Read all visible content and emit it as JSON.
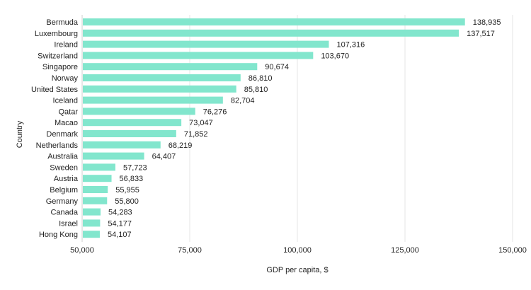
{
  "chart_data": {
    "type": "bar",
    "orientation": "horizontal",
    "title": "",
    "xlabel": "GDP per capita, $",
    "ylabel": "Country",
    "xlim": [
      50000,
      150000
    ],
    "xticks": [
      50000,
      75000,
      100000,
      125000,
      150000
    ],
    "xtick_labels": [
      "50,000",
      "75,000",
      "100,000",
      "125,000",
      "150,000"
    ],
    "grid": "vertical",
    "bar_color": "#82e6cd",
    "categories": [
      "Bermuda",
      "Luxembourg",
      "Ireland",
      "Switzerland",
      "Singapore",
      "Norway",
      "United States",
      "Iceland",
      "Qatar",
      "Macao",
      "Denmark",
      "Netherlands",
      "Australia",
      "Sweden",
      "Austria",
      "Belgium",
      "Germany",
      "Canada",
      "Israel",
      "Hong Kong"
    ],
    "values": [
      138935,
      137517,
      107316,
      103670,
      90674,
      86810,
      85810,
      82704,
      76276,
      73047,
      71852,
      68219,
      64407,
      57723,
      56833,
      55955,
      55800,
      54283,
      54177,
      54107
    ],
    "value_labels": [
      "138,935",
      "137,517",
      "107,316",
      "103,670",
      "90,674",
      "86,810",
      "85,810",
      "82,704",
      "76,276",
      "73,047",
      "71,852",
      "68,219",
      "64,407",
      "57,723",
      "56,833",
      "55,955",
      "55,800",
      "54,283",
      "54,177",
      "54,107"
    ]
  }
}
